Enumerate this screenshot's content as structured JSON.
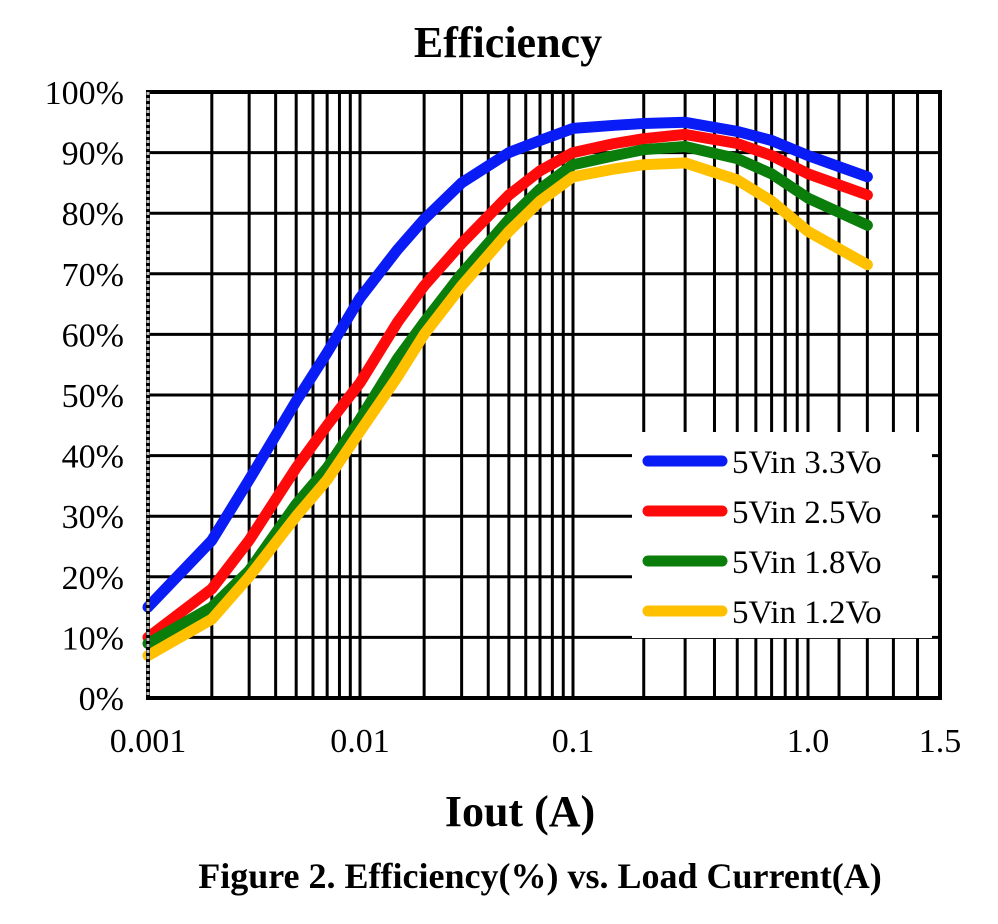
{
  "chart_data": {
    "type": "line",
    "title": "Efficiency",
    "xlabel": "Iout (A)",
    "ylabel": "",
    "caption": "Figure 2. Efficiency(%) vs. Load Current(A)",
    "x_scale": "log",
    "xlim": [
      0.001,
      1.5
    ],
    "ylim": [
      0,
      100
    ],
    "x_ticks": [
      {
        "value": 0.001,
        "label": "0.001"
      },
      {
        "value": 0.01,
        "label": "0.01"
      },
      {
        "value": 0.1,
        "label": "0.1"
      },
      {
        "value": 1.0,
        "label": "1.0"
      },
      {
        "value": 1.5,
        "label": "1.5"
      }
    ],
    "y_ticks": [
      {
        "value": 0,
        "label": "0%"
      },
      {
        "value": 10,
        "label": "10%"
      },
      {
        "value": 20,
        "label": "20%"
      },
      {
        "value": 30,
        "label": "30%"
      },
      {
        "value": 40,
        "label": "40%"
      },
      {
        "value": 50,
        "label": "50%"
      },
      {
        "value": 60,
        "label": "60%"
      },
      {
        "value": 70,
        "label": "70%"
      },
      {
        "value": 80,
        "label": "80%"
      },
      {
        "value": 90,
        "label": "90%"
      },
      {
        "value": 100,
        "label": "100%"
      }
    ],
    "grid": true,
    "legend_position": "bottom-right",
    "series": [
      {
        "name": "5Vin 3.3Vo",
        "color": "#0a1cf5",
        "points": [
          [
            0.001,
            15
          ],
          [
            0.002,
            26
          ],
          [
            0.003,
            36
          ],
          [
            0.005,
            49
          ],
          [
            0.007,
            57
          ],
          [
            0.01,
            66
          ],
          [
            0.015,
            74
          ],
          [
            0.02,
            79
          ],
          [
            0.03,
            85
          ],
          [
            0.05,
            90
          ],
          [
            0.07,
            92
          ],
          [
            0.1,
            94
          ],
          [
            0.15,
            94.5
          ],
          [
            0.2,
            94.8
          ],
          [
            0.3,
            95
          ],
          [
            0.5,
            93.5
          ],
          [
            0.7,
            92
          ],
          [
            1.0,
            89.5
          ],
          [
            1.2,
            86
          ]
        ]
      },
      {
        "name": "5Vin 2.5Vo",
        "color": "#ff0a0a",
        "points": [
          [
            0.001,
            10
          ],
          [
            0.002,
            18
          ],
          [
            0.003,
            26
          ],
          [
            0.005,
            38
          ],
          [
            0.007,
            45
          ],
          [
            0.01,
            52
          ],
          [
            0.015,
            62
          ],
          [
            0.02,
            68
          ],
          [
            0.03,
            75
          ],
          [
            0.05,
            83
          ],
          [
            0.07,
            87
          ],
          [
            0.1,
            90
          ],
          [
            0.15,
            91.5
          ],
          [
            0.2,
            92.3
          ],
          [
            0.3,
            93
          ],
          [
            0.5,
            91.5
          ],
          [
            0.7,
            89.5
          ],
          [
            1.0,
            86.5
          ],
          [
            1.2,
            83
          ]
        ]
      },
      {
        "name": "5Vin 1.8Vo",
        "color": "#0a7d0a",
        "points": [
          [
            0.001,
            9
          ],
          [
            0.002,
            15
          ],
          [
            0.003,
            21
          ],
          [
            0.005,
            32
          ],
          [
            0.007,
            38
          ],
          [
            0.01,
            46
          ],
          [
            0.015,
            56
          ],
          [
            0.02,
            62
          ],
          [
            0.03,
            70
          ],
          [
            0.05,
            79
          ],
          [
            0.07,
            84
          ],
          [
            0.1,
            88
          ],
          [
            0.15,
            89.5
          ],
          [
            0.2,
            90.5
          ],
          [
            0.3,
            91
          ],
          [
            0.5,
            89
          ],
          [
            0.7,
            86.5
          ],
          [
            1.0,
            82.5
          ],
          [
            1.2,
            78
          ]
        ]
      },
      {
        "name": "5Vin 1.2Vo",
        "color": "#ffc000",
        "points": [
          [
            0.001,
            7
          ],
          [
            0.002,
            13
          ],
          [
            0.003,
            20
          ],
          [
            0.005,
            30
          ],
          [
            0.007,
            36
          ],
          [
            0.01,
            44
          ],
          [
            0.015,
            53
          ],
          [
            0.02,
            60
          ],
          [
            0.03,
            68
          ],
          [
            0.05,
            77
          ],
          [
            0.07,
            82
          ],
          [
            0.1,
            86
          ],
          [
            0.15,
            87.3
          ],
          [
            0.2,
            88
          ],
          [
            0.3,
            88.3
          ],
          [
            0.5,
            85.5
          ],
          [
            0.7,
            82
          ],
          [
            1.0,
            77
          ],
          [
            1.2,
            71.5
          ]
        ]
      }
    ]
  }
}
